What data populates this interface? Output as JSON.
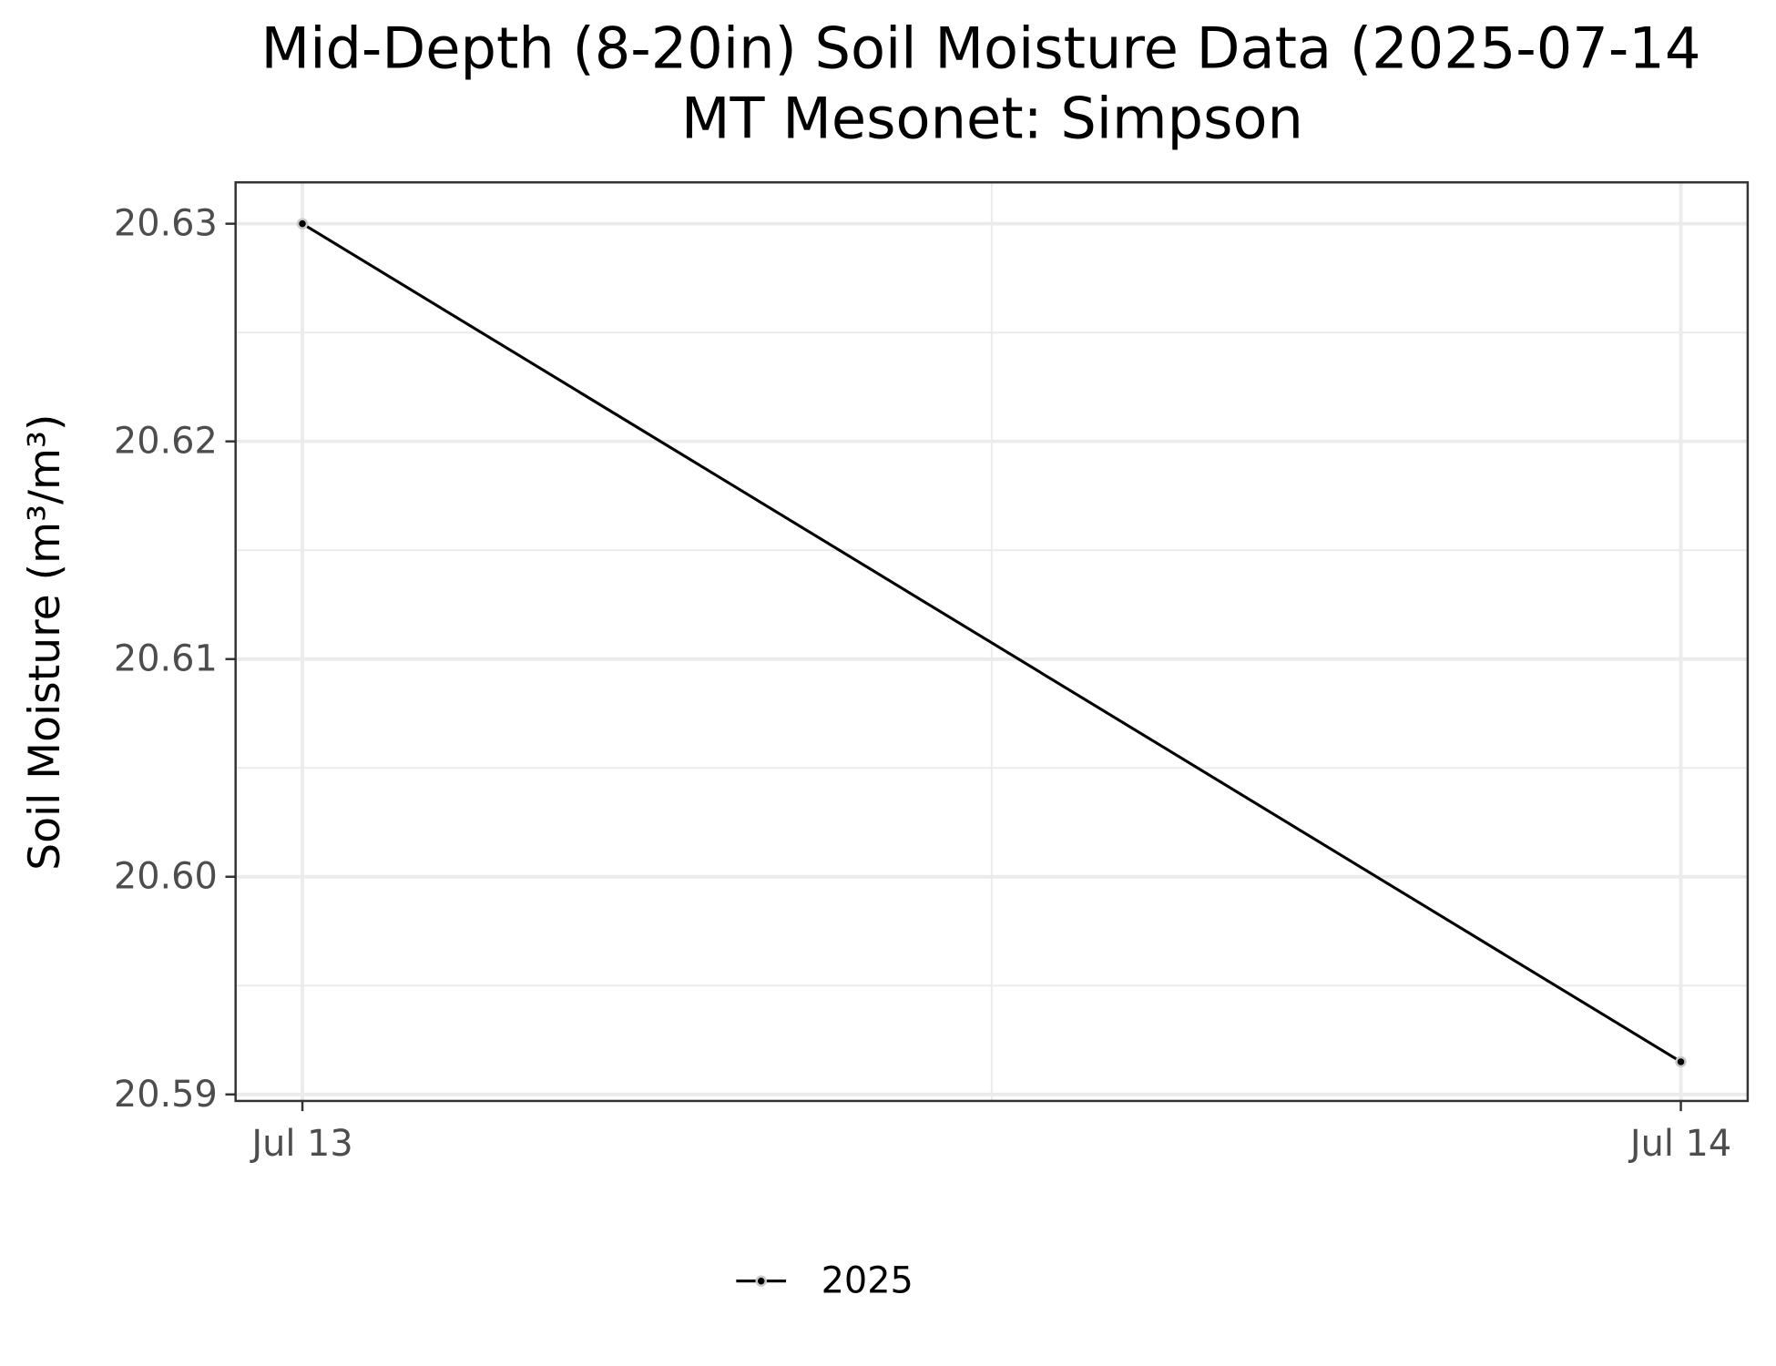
{
  "chart_data": {
    "type": "line",
    "title": "Mid-Depth (8-20in) Soil Moisture Data (2025-07-14",
    "subtitle": "MT Mesonet: Simpson",
    "y_label": "Soil Moisture (m³/m³)",
    "categories": [
      "Jul 13",
      "Jul 14"
    ],
    "series": [
      {
        "name": "2025",
        "color": "#000000",
        "values": [
          20.63,
          20.5915
        ]
      }
    ],
    "ylim": [
      20.5897,
      20.6319
    ],
    "yticks": [
      {
        "value": 20.63,
        "label": "20.63"
      },
      {
        "value": 20.62,
        "label": "20.62"
      },
      {
        "value": 20.61,
        "label": "20.61"
      },
      {
        "value": 20.6,
        "label": "20.60"
      },
      {
        "value": 20.59,
        "label": "20.59"
      }
    ],
    "yminorticks": [
      20.625,
      20.615,
      20.605,
      20.595
    ],
    "grid": true,
    "legend": "bottom"
  }
}
